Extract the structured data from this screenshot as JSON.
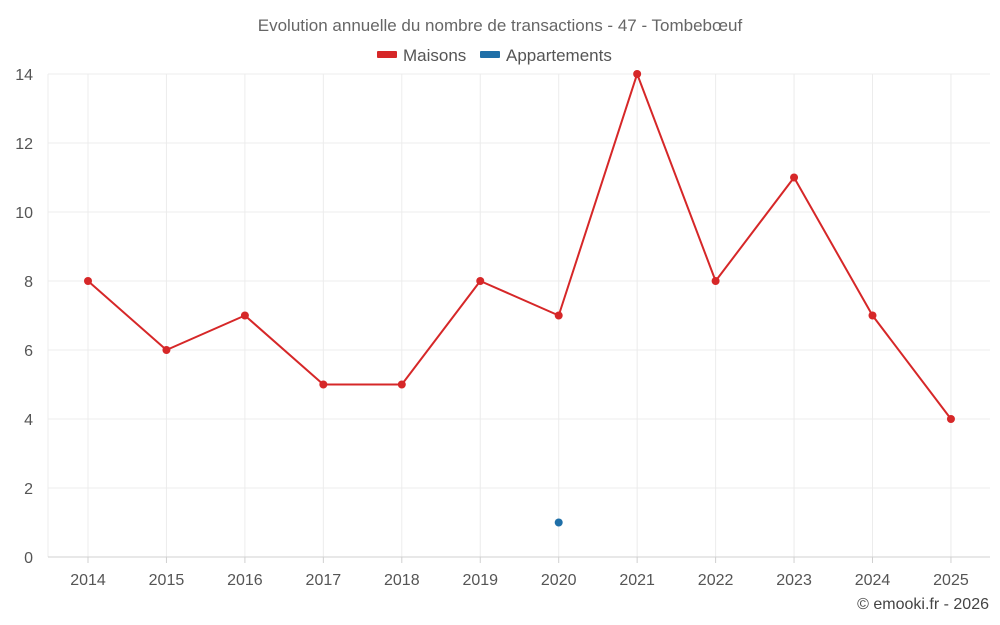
{
  "chart_data": {
    "type": "line",
    "title": "Evolution annuelle du nombre de transactions - 47 - Tombebœuf",
    "categories": [
      "2014",
      "2015",
      "2016",
      "2017",
      "2018",
      "2019",
      "2020",
      "2021",
      "2022",
      "2023",
      "2024",
      "2025"
    ],
    "series": [
      {
        "name": "Maisons",
        "color": "#d62728",
        "values": [
          8,
          6,
          7,
          5,
          5,
          8,
          7,
          14,
          8,
          11,
          7,
          4
        ]
      },
      {
        "name": "Appartements",
        "color": "#1f6fa8",
        "values": [
          null,
          null,
          null,
          null,
          null,
          null,
          1,
          null,
          null,
          null,
          null,
          null
        ]
      }
    ],
    "ylim": [
      0,
      14
    ],
    "yticks": [
      0,
      2,
      4,
      6,
      8,
      10,
      12,
      14
    ],
    "grid": true,
    "legend": "top-center",
    "xlabel": "",
    "ylabel": ""
  },
  "credit": "© emooki.fr - 2026"
}
